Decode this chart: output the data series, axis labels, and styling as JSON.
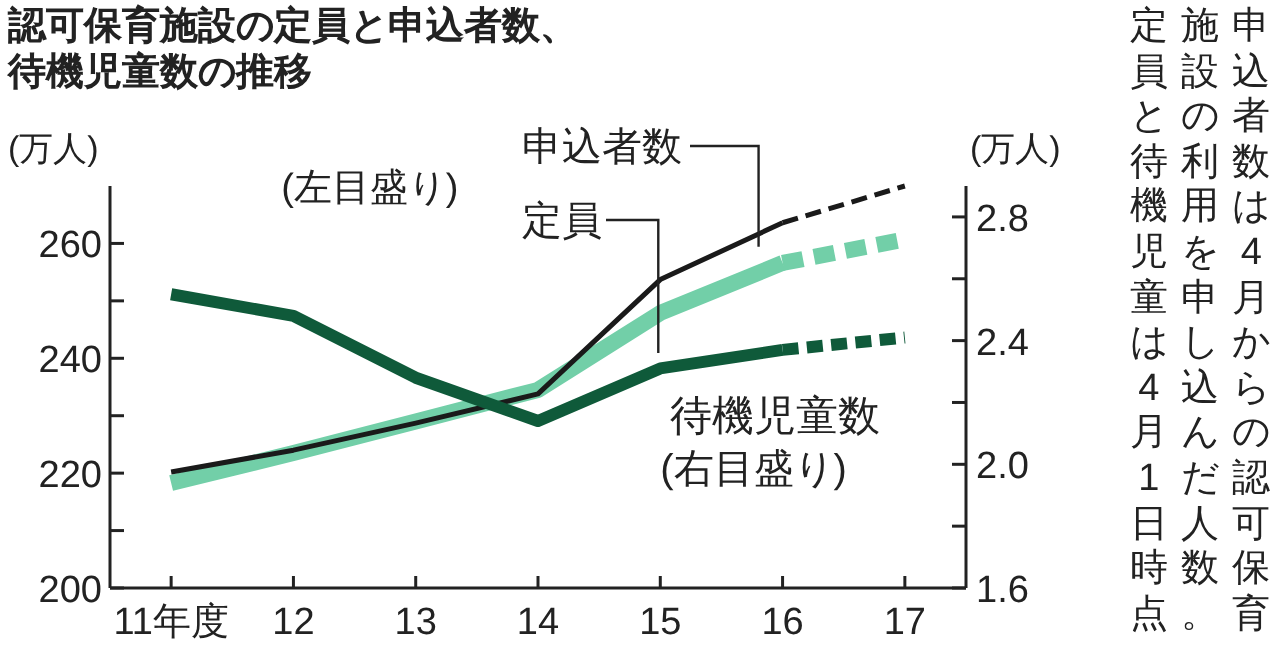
{
  "chart_data": {
    "type": "line",
    "title": "認可保育施設の定員と申込者数、待機児童数の推移",
    "categories": [
      "11年度",
      "12",
      "13",
      "14",
      "15",
      "16",
      "17"
    ],
    "ylabel": "(万人)",
    "y2label": "(万人)",
    "ylim": [
      200,
      270
    ],
    "yticks": [
      200,
      {
        "value": 210,
        "label": null
      },
      220,
      {
        "value": 230,
        "label": null
      },
      240,
      {
        "value": 250,
        "label": null
      },
      260
    ],
    "y2lim": [
      1.6,
      2.9
    ],
    "y2ticks": [
      {
        "value": 1.6,
        "label": "1.6"
      },
      {
        "value": 1.8,
        "label": null
      },
      {
        "value": 2.0,
        "label": "2.0"
      },
      {
        "value": 2.2,
        "label": null
      },
      {
        "value": 2.4,
        "label": "2.4"
      },
      {
        "value": 2.6,
        "label": null
      },
      {
        "value": 2.8,
        "label": "2.8"
      }
    ],
    "grid": false,
    "legend": false,
    "marker": "none",
    "series": [
      {
        "name": "定員",
        "color": "#72cfa8",
        "values": [
          218.3,
          223.5,
          229,
          234.5,
          247.9,
          256.6,
          null
        ]
      },
      {
        "color": "#72cfa8",
        "line_style": "dashed",
        "values": [
          null,
          null,
          null,
          null,
          null,
          256.6,
          260.7
        ]
      },
      {
        "name": "申込者数",
        "color": "#1a1a1a",
        "values": [
          220.2,
          224,
          228.7,
          233.8,
          253.7,
          263.6,
          null
        ]
      },
      {
        "color": "#1a1a1a",
        "line_style": "dashed",
        "values": [
          null,
          null,
          null,
          null,
          null,
          263.6,
          270
        ]
      },
      {
        "name": "待機児童数",
        "color": "#0f5a3a",
        "axis": "y2",
        "values": [
          2.55,
          2.48,
          2.28,
          2.14,
          2.31,
          2.37,
          null
        ]
      },
      {
        "color": "#0f5a3a",
        "axis": "y2",
        "line_style": "dashed",
        "values": [
          null,
          null,
          null,
          null,
          null,
          2.37,
          2.41
        ]
      }
    ],
    "annotations": [
      "(左目盛り)",
      "(右目盛り)",
      "申込者数は4月からの認可保育施設の利用を申し込んだ人数。定員と待機児童は4月1日時点"
    ]
  }
}
